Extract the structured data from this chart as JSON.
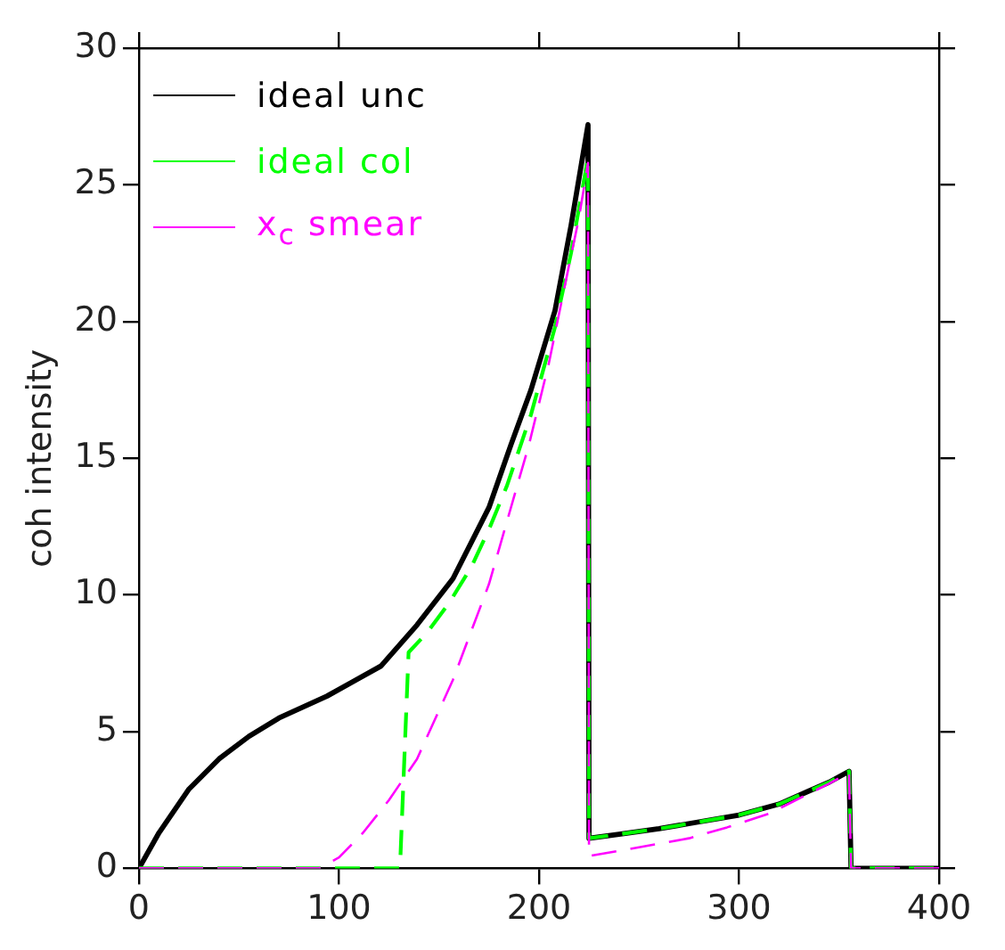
{
  "chart_data": {
    "type": "line",
    "ylabel": "coh intensity",
    "xlim": [
      0,
      400
    ],
    "xticks": [
      0,
      100,
      200,
      300,
      400
    ],
    "ylim": [
      0,
      30
    ],
    "yticks": [
      0,
      5,
      10,
      15,
      20,
      25,
      30
    ],
    "grid": false,
    "legend": "top left",
    "marker": "none",
    "series": [
      {
        "name": "ideal unc",
        "color": "#000000",
        "line_style": "solid",
        "x": [
          0,
          10,
          25,
          40,
          55,
          70,
          94,
          121,
          139,
          157,
          175,
          186,
          196,
          208,
          216,
          224.5,
          225,
          240,
          260,
          280,
          300,
          320,
          334,
          345,
          355,
          356,
          380,
          400
        ],
        "values": [
          0,
          1.3,
          2.9,
          4.0,
          4.83,
          5.5,
          6.3,
          7.4,
          8.9,
          10.6,
          13.2,
          15.5,
          17.5,
          20.4,
          23.5,
          27.2,
          1.1,
          1.25,
          1.45,
          1.7,
          1.95,
          2.35,
          2.8,
          3.15,
          3.55,
          0,
          0,
          0
        ]
      },
      {
        "name": "ideal col",
        "color": "#00ff00",
        "line_style": "dashed",
        "x": [
          0,
          130.5,
          134.8,
          143.8,
          155,
          166,
          175,
          184,
          196,
          208,
          216,
          224.5,
          225,
          240,
          260,
          280,
          300,
          320,
          334,
          345,
          355,
          356,
          380,
          400
        ],
        "values": [
          0,
          0,
          7.9,
          8.6,
          9.7,
          11,
          12.4,
          14,
          16.6,
          19.8,
          22.5,
          26,
          1.1,
          1.25,
          1.45,
          1.7,
          1.95,
          2.35,
          2.8,
          3.15,
          3.55,
          0,
          0,
          0
        ]
      },
      {
        "name": "x$_{c}$ smear",
        "color": "#ff00ff",
        "line_style": "dashed",
        "x": [
          0,
          90,
          100,
          112,
          125,
          139,
          157,
          175,
          195,
          205,
          214,
          220,
          224.5,
          225,
          250,
          275,
          294,
          315,
          334,
          345,
          355,
          356,
          380,
          400
        ],
        "values": [
          0,
          0,
          0.4,
          1.3,
          2.5,
          4.0,
          6.9,
          10.4,
          15.5,
          18.5,
          21.7,
          23.8,
          25.8,
          0.45,
          0.77,
          1.1,
          1.5,
          2.0,
          2.7,
          3.1,
          3.5,
          0,
          0,
          0
        ]
      }
    ]
  }
}
